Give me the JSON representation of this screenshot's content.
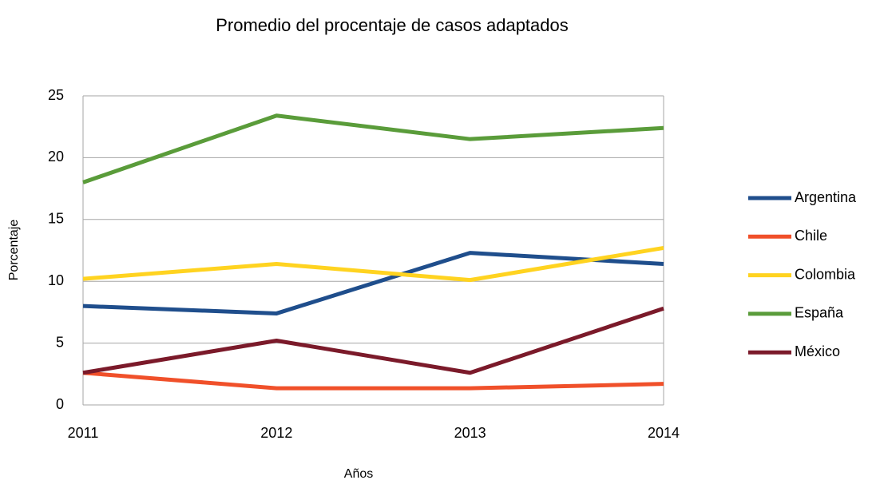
{
  "chart_data": {
    "type": "line",
    "title": "Promedio del procentaje de casos adaptados",
    "x_label": "Años",
    "y_label": "Porcentaje",
    "categories": [
      "2011",
      "2012",
      "2013",
      "2014"
    ],
    "series": [
      {
        "name": "Argentina",
        "color": "#1f4e8c",
        "values": [
          8.0,
          7.4,
          12.3,
          11.4
        ]
      },
      {
        "name": "Chile",
        "color": "#f0502a",
        "values": [
          2.6,
          1.35,
          1.35,
          1.7
        ]
      },
      {
        "name": "Colombia",
        "color": "#ffd320",
        "values": [
          10.2,
          11.4,
          10.1,
          12.7
        ]
      },
      {
        "name": "España",
        "color": "#5a9c3a",
        "values": [
          18.0,
          23.4,
          21.5,
          22.4
        ]
      },
      {
        "name": "México",
        "color": "#7b1a2a",
        "values": [
          2.6,
          5.2,
          2.6,
          7.8
        ]
      }
    ],
    "ylim": [
      0,
      25
    ],
    "yticks": [
      0,
      5,
      10,
      15,
      20,
      25
    ],
    "grid": true,
    "legend": "right"
  }
}
